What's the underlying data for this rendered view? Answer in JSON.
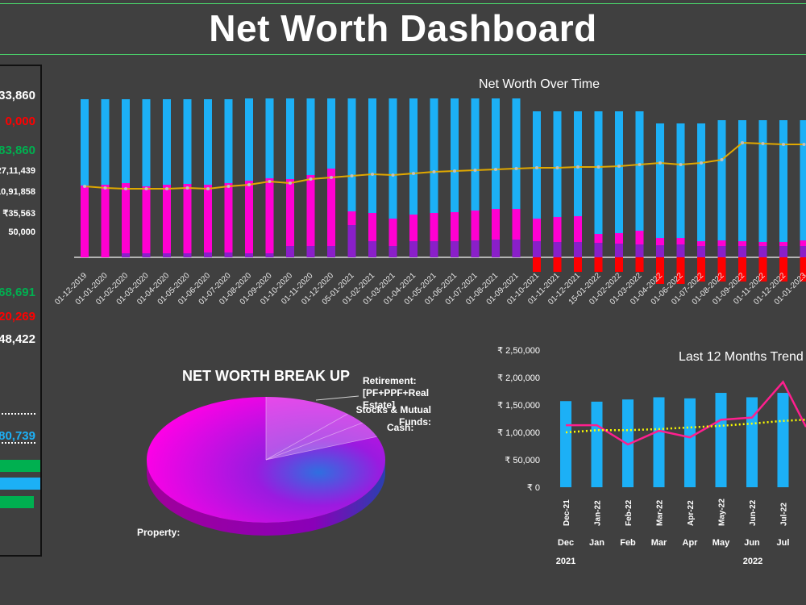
{
  "title": "Net Worth Dashboard",
  "colors": {
    "background": "#404040",
    "asset_bar": "#1cb0f6",
    "pink": "#ff00d2",
    "purple": "#8a1fc9",
    "red": "#ff0000",
    "gold": "#e0a800",
    "green": "#00b050",
    "yellow_dotted": "#ffff00",
    "trend_line": "#ff1f8e"
  },
  "left_panel": {
    "values": [
      {
        "text": "33,860",
        "color": "#ffffff"
      },
      {
        "text": "0,000",
        "color": "#ff0000"
      },
      {
        "text": "83,860",
        "color": "#00b050"
      },
      {
        "text": "27,11,439",
        "color": "#ffffff"
      },
      {
        "text": "10,91,858",
        "color": "#ffffff"
      },
      {
        "text": "₹35,563",
        "color": "#ffffff"
      },
      {
        "text": "50,000",
        "color": "#ffffff"
      },
      {
        "text": "68,691",
        "color": "#00b050"
      },
      {
        "text": "20,269",
        "color": "#ff0000"
      },
      {
        "text": "48,422",
        "color": "#ffffff"
      },
      {
        "text": "80,739",
        "color": "#1cb0f6"
      }
    ]
  },
  "chart_data": [
    {
      "type": "bar",
      "title": "Net Worth Over Time",
      "categories": [
        "01-12-2019",
        "01-01-2020",
        "01-02-2020",
        "01-03-2020",
        "01-04-2020",
        "01-05-2020",
        "01-06-2020",
        "01-07-2020",
        "01-08-2020",
        "01-09-2020",
        "01-10-2020",
        "01-11-2020",
        "01-12-2020",
        "05-01-2021",
        "01-02-2021",
        "01-03-2021",
        "01-04-2021",
        "01-05-2021",
        "01-06-2021",
        "01-07-2021",
        "01-08-2021",
        "01-09-2021",
        "01-10-2021",
        "01-11-2021",
        "01-12-2021",
        "15-01-2022",
        "01-02-2022",
        "01-03-2022",
        "01-04-2022",
        "01-06-2022",
        "01-07-2022",
        "01-08-2022",
        "01-09-2022",
        "01-11-2022",
        "01-12-2022",
        "01-01-2023"
      ],
      "series": [
        {
          "values": [
            196,
            196,
            196,
            196,
            196,
            196,
            196,
            196,
            197,
            197,
            197,
            197,
            197,
            197,
            197,
            197,
            197,
            197,
            197,
            197,
            197,
            197,
            181,
            181,
            181,
            181,
            181,
            181,
            166,
            166,
            166,
            170,
            170,
            170,
            170,
            170
          ]
        },
        {
          "values": [
            89,
            90,
            92,
            88,
            90,
            91,
            90,
            92,
            95,
            98,
            97,
            102,
            110,
            57,
            55,
            48,
            53,
            55,
            56,
            58,
            60,
            60,
            48,
            50,
            51,
            29,
            30,
            33,
            24,
            24,
            20,
            21,
            20,
            19,
            19,
            21
          ]
        },
        {
          "values": [
            0,
            0,
            5,
            5,
            5,
            5,
            6,
            6,
            5,
            5,
            14,
            14,
            14,
            40,
            20,
            14,
            20,
            20,
            20,
            21,
            22,
            22,
            20,
            19,
            19,
            18,
            17,
            16,
            15,
            16,
            14,
            14,
            14,
            14,
            14,
            14
          ]
        },
        {
          "values": [
            0,
            0,
            0,
            0,
            0,
            0,
            0,
            0,
            0,
            0,
            0,
            0,
            0,
            0,
            0,
            0,
            0,
            0,
            0,
            0,
            0,
            0,
            -18,
            -18,
            -18,
            -18,
            -18,
            -18,
            -33,
            -33,
            -30,
            -30,
            -30,
            -30,
            -30,
            -30
          ]
        },
        {
          "type": "line",
          "values": [
            88,
            86,
            85,
            85,
            85,
            86,
            85,
            88,
            90,
            94,
            92,
            97,
            99,
            101,
            103,
            102,
            104,
            106,
            107,
            108,
            109,
            110,
            111,
            111,
            112,
            112,
            113,
            115,
            117,
            115,
            117,
            121,
            142,
            141,
            140,
            140
          ]
        }
      ]
    },
    {
      "type": "pie",
      "title": "NET WORTH BREAK UP",
      "labels": [
        "Retirement: [PF+PPF+Real Estate]",
        "Stocks & Mutual Funds:",
        "Cash:",
        "Property:"
      ],
      "values": [
        12,
        3,
        4,
        81
      ]
    },
    {
      "type": "bar",
      "title": "Last 12 Months Trend",
      "categories": [
        "Dec-21",
        "Jan-22",
        "Feb-22",
        "Mar-22",
        "Apr-22",
        "May-22",
        "Jun-22",
        "Jul-22"
      ],
      "month_labels": [
        "Dec",
        "Jan",
        "Feb",
        "Mar",
        "Apr",
        "May",
        "Jun",
        "Jul"
      ],
      "year_labels": [
        "2021",
        "2022"
      ],
      "yticks": [
        "₹ 2,50,000",
        "₹ 2,00,000",
        "₹ 1,50,000",
        "₹ 1,00,000",
        "₹ 50,000",
        "₹ 0"
      ],
      "ylim": [
        0,
        250000
      ],
      "series": [
        {
          "type": "bar",
          "values": [
            157000,
            156000,
            160000,
            164000,
            162000,
            172000,
            164000,
            172000
          ]
        },
        {
          "type": "line",
          "values": [
            113000,
            113000,
            78000,
            103000,
            91000,
            123000,
            127000,
            192000
          ]
        },
        {
          "type": "line",
          "values": [
            100000,
            104000,
            104000,
            106000,
            109000,
            112000,
            116000,
            121000
          ]
        }
      ]
    }
  ]
}
